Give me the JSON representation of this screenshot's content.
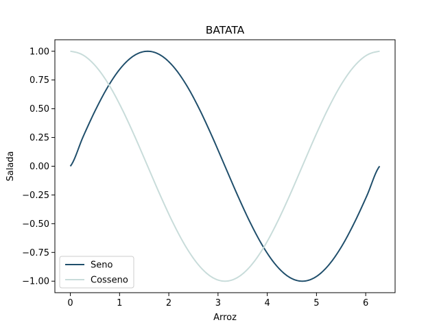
{
  "chart_data": {
    "type": "line",
    "title": "BATATA",
    "xlabel": "Arroz",
    "ylabel": "Salada",
    "xlim": [
      -0.314,
      6.597
    ],
    "ylim": [
      -1.1,
      1.1
    ],
    "x_ticks": [
      0,
      1,
      2,
      3,
      4,
      5,
      6
    ],
    "x_tick_labels": [
      "0",
      "1",
      "2",
      "3",
      "4",
      "5",
      "6"
    ],
    "y_ticks": [
      -1.0,
      -0.75,
      -0.5,
      -0.25,
      0.0,
      0.25,
      0.5,
      0.75,
      1.0
    ],
    "y_tick_labels": [
      "−1.00",
      "−0.75",
      "−0.50",
      "−0.25",
      "0.00",
      "0.25",
      "0.50",
      "0.75",
      "1.00"
    ],
    "grid": false,
    "legend_position": "lower-left",
    "x": [
      0,
      0.2618,
      0.5236,
      0.7854,
      1.0472,
      1.309,
      1.5708,
      1.8326,
      2.0944,
      2.3562,
      2.618,
      2.8798,
      3.1416,
      3.4034,
      3.6652,
      3.927,
      4.1888,
      4.4506,
      4.7124,
      4.9742,
      5.236,
      5.4978,
      5.7596,
      6.0214,
      6.2832
    ],
    "series": [
      {
        "name": "Seno",
        "color": "#1f4e6b",
        "values": [
          0,
          0.2588,
          0.5,
          0.7071,
          0.866,
          0.9659,
          1,
          0.9659,
          0.866,
          0.7071,
          0.5,
          0.2588,
          0,
          -0.2588,
          -0.5,
          -0.7071,
          -0.866,
          -0.9659,
          -1,
          -0.9659,
          -0.866,
          -0.7071,
          -0.5,
          -0.2588,
          0
        ]
      },
      {
        "name": "Cosseno",
        "color": "#c8dcda",
        "values": [
          1,
          0.9659,
          0.866,
          0.7071,
          0.5,
          0.2588,
          0,
          -0.2588,
          -0.5,
          -0.7071,
          -0.866,
          -0.9659,
          -1,
          -0.9659,
          -0.866,
          -0.7071,
          -0.5,
          -0.2588,
          0,
          0.2588,
          0.5,
          0.7071,
          0.866,
          0.9659,
          1
        ]
      }
    ]
  }
}
